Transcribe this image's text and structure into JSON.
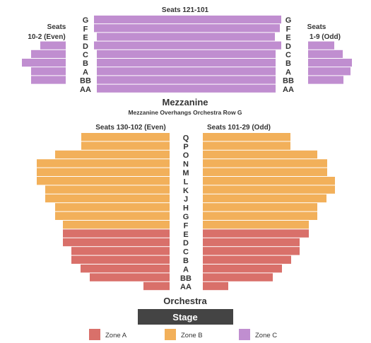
{
  "colors": {
    "zone_a": "#d9706a",
    "zone_b": "#f2b05a",
    "zone_c": "#c08ed0",
    "stage": "#444444",
    "text": "#333333"
  },
  "mezzanine": {
    "title": "Mezzanine",
    "subtitle": "Mezzanine Overhangs Orchestra Row G",
    "center_label": "Seats 121-101",
    "left_label": [
      "Seats",
      "10-2 (Even)"
    ],
    "right_label": [
      "Seats",
      "1-9 (Odd)"
    ],
    "rows": [
      "G",
      "F",
      "E",
      "D",
      "C",
      "B",
      "A",
      "BB",
      "AA"
    ],
    "zone": "Zone C"
  },
  "orchestra": {
    "title": "Orchestra",
    "left_label": "Seats 130-102 (Even)",
    "right_label": "Seats 101-29 (Odd)",
    "rows": [
      "Q",
      "P",
      "O",
      "N",
      "M",
      "L",
      "K",
      "J",
      "H",
      "G",
      "F",
      "E",
      "D",
      "C",
      "B",
      "A",
      "BB",
      "AA"
    ],
    "zone_b_rows": [
      "Q",
      "P",
      "O",
      "N",
      "M",
      "L",
      "K",
      "J",
      "H",
      "G",
      "F"
    ],
    "zone_a_rows": [
      "E",
      "D",
      "C",
      "B",
      "A",
      "BB",
      "AA"
    ]
  },
  "stage": {
    "label": "Stage"
  },
  "legend": [
    {
      "label": "Zone A",
      "color": "#d9706a"
    },
    {
      "label": "Zone B",
      "color": "#f2b05a"
    },
    {
      "label": "Zone C",
      "color": "#c08ed0"
    }
  ]
}
